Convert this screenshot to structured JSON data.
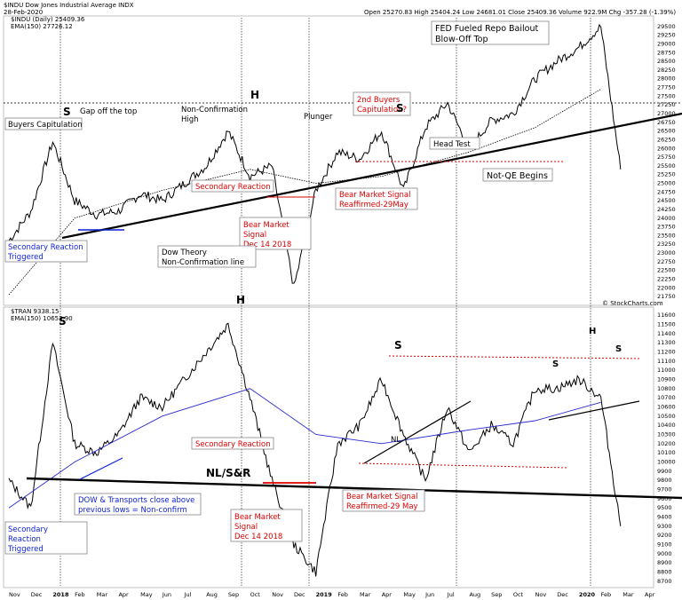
{
  "header": {
    "symbol_line": "$INDU Dow Jones Industrial Average INDX",
    "date": "28-Feb-2020",
    "ohlc": "Open 25270.83  High 25404.24  Low 24681.01  Close 25409.36  Volume 922.9M  Chg -357.28 (-1.39%)",
    "legend_price": "$INDU (Daily) 25409.36",
    "legend_ema": "EMA(150) 27726.12",
    "credit": "© StockCharts.com"
  },
  "header2": {
    "symbol": "$TRAN 9338.15",
    "legend_ema": "EMA(150) 10653.90"
  },
  "colors": {
    "price": "#000000",
    "ema_top": "#000000",
    "ema_bottom": "#2a2acf",
    "red": "#dd0000",
    "blue": "#0a1fd6"
  },
  "x_axis": [
    "Nov",
    "Dec",
    "2018",
    "Feb",
    "Mar",
    "Apr",
    "May",
    "Jun",
    "Jul",
    "Aug",
    "Sep",
    "Oct",
    "Nov",
    "Dec",
    "2019",
    "Feb",
    "Mar",
    "Apr",
    "May",
    "Jun",
    "Jul",
    "Aug",
    "Sep",
    "Oct",
    "Nov",
    "Dec",
    "2020",
    "Feb",
    "Mar",
    "Apr"
  ],
  "chart_data": [
    {
      "type": "line",
      "title": "$INDU Dow Jones Industrial Average INDX",
      "series": [
        {
          "name": "$INDU (Daily)",
          "x": [
            "2017-11",
            "2017-12",
            "2018-01",
            "2018-02",
            "2018-03",
            "2018-04",
            "2018-05",
            "2018-06",
            "2018-07",
            "2018-08",
            "2018-09",
            "2018-10",
            "2018-11",
            "2018-12",
            "2019-01",
            "2019-02",
            "2019-03",
            "2019-04",
            "2019-05",
            "2019-06",
            "2019-07",
            "2019-08",
            "2019-09",
            "2019-10",
            "2019-11",
            "2019-12",
            "2020-01",
            "2020-02",
            "2020-02-28"
          ],
          "values": [
            23350,
            24200,
            26200,
            24500,
            24100,
            24200,
            24700,
            24500,
            25000,
            25500,
            26500,
            25200,
            25500,
            22000,
            24800,
            25900,
            25700,
            26500,
            24800,
            26600,
            27300,
            26000,
            26800,
            27000,
            28000,
            28500,
            28900,
            29500,
            25400
          ]
        },
        {
          "name": "EMA(150)",
          "x": [
            "2017-11",
            "2018-02",
            "2018-06",
            "2018-10",
            "2019-01",
            "2019-04",
            "2019-08",
            "2019-11",
            "2020-02"
          ],
          "values": [
            21800,
            24000,
            24800,
            25400,
            25000,
            25200,
            25900,
            26600,
            27700
          ]
        }
      ],
      "ylim": [
        21600,
        29700
      ],
      "y_ticks": [
        21750,
        22000,
        22250,
        22500,
        22750,
        23000,
        23250,
        23500,
        23750,
        24000,
        24250,
        24500,
        24750,
        25000,
        25250,
        25500,
        25750,
        26000,
        26250,
        26500,
        26750,
        27000,
        27250,
        27500,
        27750,
        28000,
        28250,
        28500,
        28750,
        29000,
        29250,
        29500
      ],
      "annotations": {
        "s1": "S",
        "gap": "Gap off the top",
        "buyers_cap": "Buyers Capitulation",
        "noncon": "Non-Confirmation",
        "high": "High",
        "h1": "H",
        "plunger": "Plunger",
        "second_buyers_1": "2nd Buyers",
        "second_buyers_2": "Capitulation?",
        "s2": "S",
        "fed_1": "FED Fueled Repo Bailout",
        "fed_2": "Blow-Off Top",
        "head_test": "Head Test",
        "secondary_reaction": "Secondary Reaction",
        "bms_1": "Bear Market Signal",
        "bms_2": "Reaffirmed-29May",
        "notqe": "Not-QE Begins",
        "bear_1": "Bear Market",
        "bear_2": "Signal",
        "bear_3": "Dec 14 2018",
        "dt_1": "Dow Theory",
        "dt_2": "Non-Confirmation line",
        "sec_react_1": "Secondary Reaction",
        "sec_react_2": "Triggered"
      }
    },
    {
      "type": "line",
      "title": "$TRAN",
      "series": [
        {
          "name": "$TRAN",
          "x": [
            "2017-11",
            "2017-12",
            "2018-01",
            "2018-02",
            "2018-03",
            "2018-04",
            "2018-05",
            "2018-06",
            "2018-07",
            "2018-08",
            "2018-09",
            "2018-10",
            "2018-11",
            "2018-12",
            "2019-01",
            "2019-02",
            "2019-03",
            "2019-04",
            "2019-05",
            "2019-06",
            "2019-07",
            "2019-08",
            "2019-09",
            "2019-10",
            "2019-11",
            "2019-12",
            "2020-01",
            "2020-02",
            "2020-02-28"
          ],
          "values": [
            9800,
            9500,
            11300,
            10200,
            10100,
            10300,
            10700,
            10600,
            10900,
            11200,
            11500,
            10700,
            9800,
            9100,
            8800,
            10200,
            10400,
            10900,
            10300,
            9800,
            10600,
            10100,
            10400,
            10200,
            10800,
            10800,
            10900,
            10700,
            9300
          ]
        },
        {
          "name": "EMA(150)",
          "x": [
            "2017-11",
            "2018-02",
            "2018-06",
            "2018-10",
            "2019-01",
            "2019-04",
            "2019-08",
            "2019-11",
            "2020-02"
          ],
          "values": [
            9500,
            10000,
            10500,
            10800,
            10300,
            10200,
            10350,
            10450,
            10650
          ]
        }
      ],
      "ylim": [
        8650,
        11650
      ],
      "y_ticks": [
        8700,
        8800,
        8900,
        9000,
        9100,
        9200,
        9300,
        9400,
        9500,
        9600,
        9700,
        9800,
        9900,
        10000,
        10100,
        10200,
        10300,
        10400,
        10500,
        10600,
        10700,
        10800,
        10900,
        11000,
        11100,
        11200,
        11300,
        11400,
        11500,
        11600
      ],
      "annotations": {
        "s1": "S",
        "h1": "H",
        "s2": "S",
        "s3": "S",
        "h2": "H",
        "s4": "S",
        "nl": "NL",
        "nlsr": "NL/S&R",
        "secondary_reaction": "Secondary Reaction",
        "dow_1": "DOW & Transports close above",
        "dow_2": "previous lows = Non-confirm",
        "bms_1": "Bear Market Signal",
        "bms_2": "Reaffirmed-29 May",
        "bear_1": "Bear Market",
        "bear_2": "Signal",
        "bear_3": "Dec 14 2018",
        "sr_1": "Secondary",
        "sr_2": "Reaction",
        "sr_3": "Triggered"
      }
    }
  ]
}
